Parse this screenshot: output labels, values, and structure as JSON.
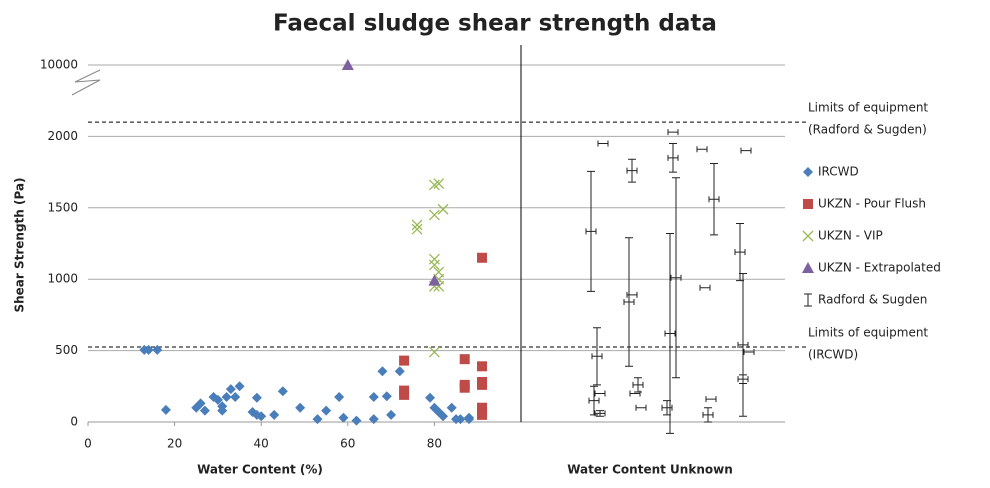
{
  "chart_data": {
    "type": "scatter",
    "title": "Faecal sludge shear strength data",
    "x_label": "Water Content (%)",
    "y_label": "Shear Strength (Pa)",
    "x_label_unknown": "Water Content Unknown",
    "xlim": [
      0,
      100
    ],
    "xticks": [
      0,
      20,
      40,
      60,
      80
    ],
    "ylim": [
      0,
      10000
    ],
    "y_break": [
      2500,
      10000
    ],
    "yticks": [
      0,
      500,
      1000,
      1500,
      2000,
      10000
    ],
    "grid": true,
    "legend": "right",
    "annotations": [
      {
        "y": 2100,
        "label": [
          "Limits of equipment",
          "(Radford & Sugden)"
        ]
      },
      {
        "y": 525,
        "label": [
          "Limits of equipment",
          "(IRCWD)"
        ]
      }
    ],
    "series": [
      {
        "name": "IRCWD",
        "color": "#4a7ebb",
        "marker": "diamond",
        "x": [
          13,
          14,
          16,
          18,
          25,
          26,
          27,
          29,
          30,
          31,
          31,
          32,
          33,
          34,
          35,
          38,
          39,
          39,
          40,
          43,
          45,
          49,
          53,
          55,
          58,
          59,
          62,
          66,
          66,
          68,
          69,
          70,
          72,
          79,
          80,
          81,
          82,
          84,
          85,
          86,
          88,
          88
        ],
        "values": [
          505,
          505,
          505,
          85,
          100,
          130,
          80,
          175,
          155,
          80,
          110,
          175,
          230,
          175,
          250,
          70,
          50,
          170,
          40,
          50,
          215,
          100,
          20,
          80,
          175,
          30,
          10,
          20,
          175,
          355,
          180,
          50,
          355,
          170,
          100,
          70,
          40,
          100,
          20,
          20,
          20,
          30
        ]
      },
      {
        "name": "UKZN - Pour Flush",
        "color": "#be4b48",
        "marker": "square",
        "x": [
          73,
          73,
          73,
          87,
          87,
          87,
          91,
          91,
          91,
          91,
          91,
          91,
          91
        ],
        "values": [
          430,
          220,
          190,
          440,
          260,
          240,
          1150,
          390,
          280,
          260,
          100,
          70,
          50
        ]
      },
      {
        "name": "UKZN - VIP",
        "color": "#98b954",
        "marker": "x",
        "x": [
          76,
          76,
          80,
          81,
          80,
          82,
          80,
          80,
          81,
          81,
          80,
          81,
          80
        ],
        "values": [
          1380,
          1350,
          1660,
          1670,
          1450,
          1490,
          1140,
          1100,
          1050,
          1000,
          950,
          950,
          490
        ]
      },
      {
        "name": "UKZN - Extrapolated",
        "color": "#7d60a0",
        "marker": "triangle",
        "x": [
          60,
          80
        ],
        "values": [
          10000,
          990
        ]
      },
      {
        "name": "Radford & Sugden",
        "color": "#222222",
        "marker": "errorbar",
        "values": [
          1335,
          890,
          1850,
          1910,
          540,
          200,
          840,
          620,
          160,
          1190,
          460,
          260,
          100,
          50,
          490,
          150,
          200,
          1010,
          940,
          1900,
          1950,
          1760,
          2030,
          1560,
          300,
          60,
          100
        ],
        "yerr": [
          420,
          0,
          100,
          0,
          500,
          0,
          450,
          700,
          0,
          200,
          200,
          50,
          50,
          50,
          0,
          100,
          0,
          700,
          0,
          0,
          0,
          80,
          0,
          250,
          30,
          20,
          0
        ]
      }
    ]
  }
}
